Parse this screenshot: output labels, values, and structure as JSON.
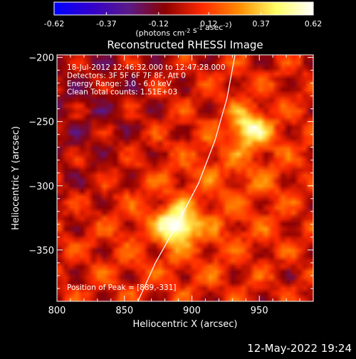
{
  "chart_data": {
    "type": "heatmap",
    "title": "Reconstructed RHESSI Image",
    "xlabel": "Heliocentric X (arcsec)",
    "ylabel": "Heliocentric Y (arcsec)",
    "xlim": [
      800,
      990
    ],
    "ylim": [
      -390,
      -198
    ],
    "x_ticks": [
      800,
      850,
      900,
      950
    ],
    "y_ticks": [
      -200,
      -250,
      -300,
      -350
    ],
    "colorbar": {
      "ticks": [
        -0.62,
        -0.37,
        -0.12,
        0.12,
        0.37,
        0.62
      ],
      "tick_labels": [
        "-0.62",
        "-0.37",
        "-0.12",
        "0.12",
        "0.37",
        "0.62"
      ],
      "unit_main": "(photons cm",
      "unit_sup1": "-2",
      "unit_mid": " s",
      "unit_sup2": "-1",
      "unit_mid2": " asec",
      "unit_sup3": "-2",
      "unit_end": ")",
      "colormap": [
        "#0000ff",
        "#3300cc",
        "#5a1a8a",
        "#8c0000",
        "#ff2a00",
        "#ff8c00",
        "#ffff66",
        "#ffffff"
      ]
    },
    "annotations": [
      "18-Jul-2012 12:46:32.000 to 12:47:28.000",
      "Detectors: 3F 5F 6F 7F 8F, Att 0",
      "Energy Range: 3.0 - 6.0 keV",
      "Clean     Total counts: 1.51E+03"
    ],
    "peak_label": "Position of Peak = [889,-331]",
    "peak": [
      889,
      -331
    ],
    "secondary_sources": [
      {
        "x": 943,
        "y": -255,
        "amplitude": 0.42
      },
      {
        "x": 889,
        "y": -331,
        "amplitude": 0.62
      }
    ],
    "limb_curve": [
      [
        860,
        -390
      ],
      [
        873,
        -360
      ],
      [
        889,
        -330
      ],
      [
        905,
        -298
      ],
      [
        917,
        -265
      ],
      [
        926,
        -232
      ],
      [
        932,
        -198
      ]
    ]
  },
  "footer_text": "12-May-2022 19:24"
}
